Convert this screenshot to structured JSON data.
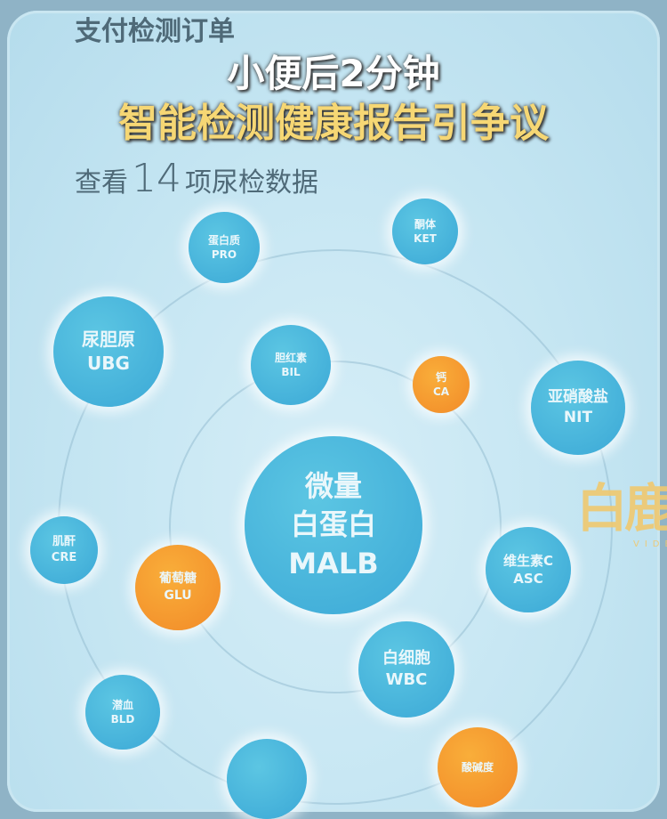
{
  "caption": {
    "line1": "小便后2分钟",
    "line2": "智能检测健康报告引争议"
  },
  "app": {
    "order_heading": "支付检测订单",
    "view_prefix": "查看",
    "count": "14",
    "view_suffix": "项尿检数据"
  },
  "colors": {
    "normal": "#3ba8d6",
    "abnormal": "#f28a28",
    "caption_highlight": "#f6d774"
  },
  "items": [
    {
      "cn": "蛋白质",
      "en": "PRO",
      "status": "normal"
    },
    {
      "cn": "酮体",
      "en": "KET",
      "status": "normal"
    },
    {
      "cn": "尿胆原",
      "en": "UBG",
      "status": "normal"
    },
    {
      "cn": "胆红素",
      "en": "BIL",
      "status": "normal"
    },
    {
      "cn": "钙",
      "en": "CA",
      "status": "abnormal"
    },
    {
      "cn": "亚硝酸盐",
      "en": "NIT",
      "status": "normal"
    },
    {
      "cn": "微量\n白蛋白",
      "en": "MALB",
      "status": "normal"
    },
    {
      "cn": "肌酐",
      "en": "CRE",
      "status": "normal"
    },
    {
      "cn": "葡萄糖",
      "en": "GLU",
      "status": "abnormal"
    },
    {
      "cn": "维生素C",
      "en": "ASC",
      "status": "normal"
    },
    {
      "cn": "白细胞",
      "en": "WBC",
      "status": "normal"
    },
    {
      "cn": "潜血",
      "en": "BLD",
      "status": "normal"
    },
    {
      "cn": "酸碱度",
      "en": "",
      "status": "abnormal"
    },
    {
      "cn": "",
      "en": "",
      "status": "normal"
    }
  ],
  "watermark": {
    "logo": "白鹿",
    "sub": "VIDEO"
  }
}
